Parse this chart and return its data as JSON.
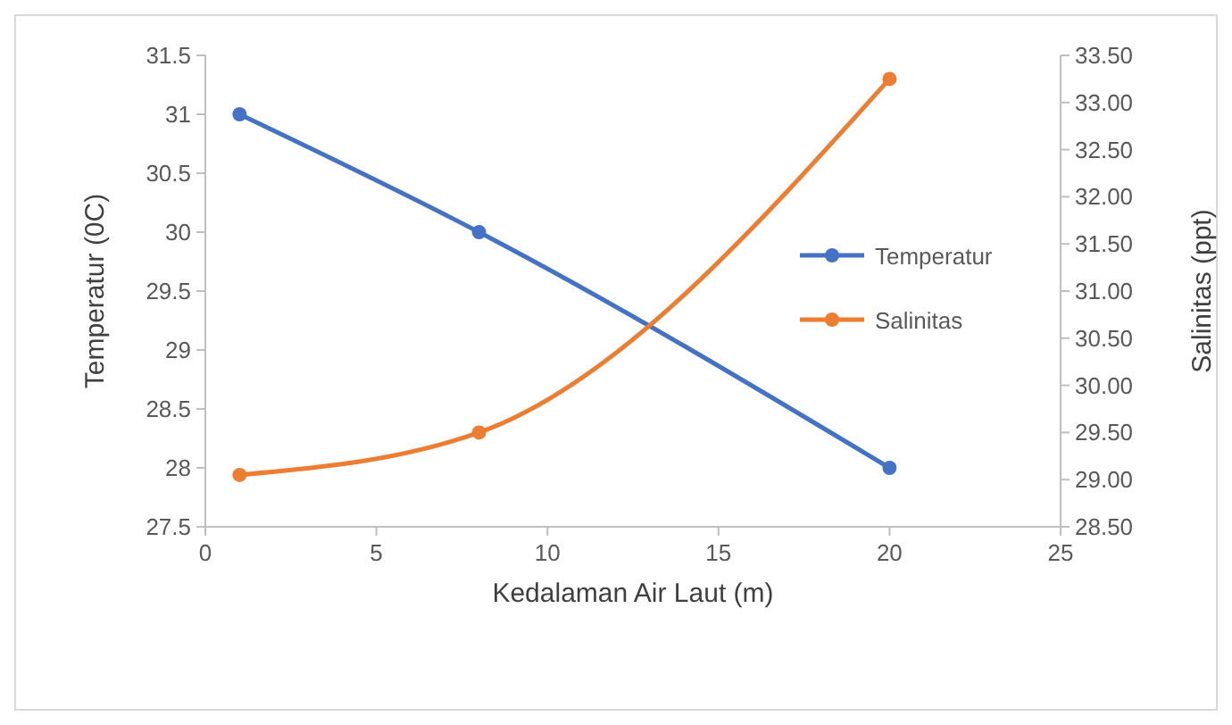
{
  "chart_data": {
    "type": "line",
    "xlabel": "Kedalaman Air Laut (m)",
    "ylabel": "Temperatur (0C)",
    "y2label": "Salinitas (ppt)",
    "x": [
      1,
      8,
      20
    ],
    "series": [
      {
        "name": "Temperatur",
        "color": "#4472c4",
        "values": [
          31,
          30,
          28
        ]
      },
      {
        "name": "Salinitas",
        "color": "#ed7d31",
        "values": [
          29.05,
          29.5,
          33.25
        ],
        "axis": "y2"
      }
    ],
    "xlim": [
      0,
      25
    ],
    "xticks": [
      0,
      5,
      10,
      15,
      20,
      25
    ],
    "ylim": [
      27.5,
      31.5
    ],
    "yticks": [
      27.5,
      28,
      28.5,
      29,
      29.5,
      30,
      30.5,
      31,
      31.5
    ],
    "y2lim": [
      28.5,
      33.5
    ],
    "y2ticks": [
      {
        "value": 28.5,
        "label": "28.50"
      },
      {
        "value": 29,
        "label": "29.00"
      },
      {
        "value": 29.5,
        "label": "29.50"
      },
      {
        "value": 30,
        "label": "30.00"
      },
      {
        "value": 30.5,
        "label": "30.50"
      },
      {
        "value": 31,
        "label": "31.00"
      },
      {
        "value": 31.5,
        "label": "31.50"
      },
      {
        "value": 32,
        "label": "32.00"
      },
      {
        "value": 32.5,
        "label": "32.50"
      },
      {
        "value": 33,
        "label": "33.00"
      },
      {
        "value": 33.5,
        "label": "33.50"
      }
    ],
    "grid": false,
    "legend": "right",
    "marker": "circle",
    "line_style": "solid"
  }
}
